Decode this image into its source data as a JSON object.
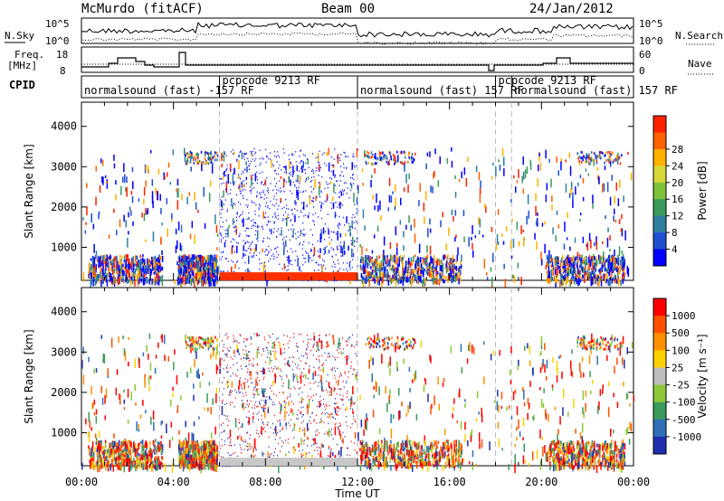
{
  "header": {
    "station": "McMurdo (fitACF)",
    "beam": "Beam 00",
    "date": "24/Jan/2012"
  },
  "top_panels": {
    "nsky_label": "N.Sky",
    "nsearch_label": "N.Search",
    "freq_label_1": "Freq.",
    "freq_label_2": "[MHz]",
    "nave_label": "Nave",
    "cpid_label": "CPID",
    "noise_ticks": [
      "10^5",
      "10^0"
    ],
    "freq_ticks": [
      "18",
      "8"
    ],
    "nave_ticks": [
      "60",
      "0"
    ]
  },
  "cpid_segments": [
    {
      "label": "normalsound (fast) -157 RF",
      "start_hour": 0.0
    },
    {
      "label": "pcpcode 9213 RF",
      "start_hour": 6.0
    },
    {
      "label": "normalsound (fast) 157 RF",
      "start_hour": 12.0
    },
    {
      "label": "pcpcode 9213 RF",
      "start_hour": 18.0
    },
    {
      "label": "normalsound (fast) 157 RF",
      "start_hour": 18.7
    }
  ],
  "chart_data": [
    {
      "type": "heatmap",
      "name": "power",
      "ylabel": "Slant Range [km]",
      "xlabel": "",
      "xlim_hours": [
        0,
        24
      ],
      "ylim": [
        180,
        4600
      ],
      "yticks": [
        "1000",
        "2000",
        "3000",
        "4000"
      ],
      "colorbar_label": "Power [dB]",
      "colorbar_ticks": [
        "4",
        "8",
        "12",
        "16",
        "20",
        "24",
        "28"
      ],
      "colorbar_colors": [
        "#0000ff",
        "#1f4fd0",
        "#2f7fa0",
        "#3a9a5a",
        "#7ec23a",
        "#d6d83a",
        "#ffb000",
        "#ff6000",
        "#ff2000"
      ]
    },
    {
      "type": "heatmap",
      "name": "velocity",
      "ylabel": "Slant Range [km]",
      "xlabel": "Time UT",
      "xlim_hours": [
        0,
        24
      ],
      "ylim": [
        180,
        4600
      ],
      "yticks": [
        "1000",
        "2000",
        "3000",
        "4000"
      ],
      "xticks": [
        "00:00",
        "04:00",
        "08:00",
        "12:00",
        "16:00",
        "20:00",
        "00:00"
      ],
      "colorbar_label": "Velocity [m s⁻¹]",
      "colorbar_ticks": [
        "1000",
        "500",
        "100",
        "25",
        "-25",
        "-100",
        "-500",
        "-1000"
      ],
      "colorbar_colors": [
        "#1f2fb0",
        "#2e6fb8",
        "#3a9a5a",
        "#8cc83a",
        "#bdbdbd",
        "#ffd000",
        "#ff9000",
        "#ff5000",
        "#ff0000"
      ]
    }
  ]
}
